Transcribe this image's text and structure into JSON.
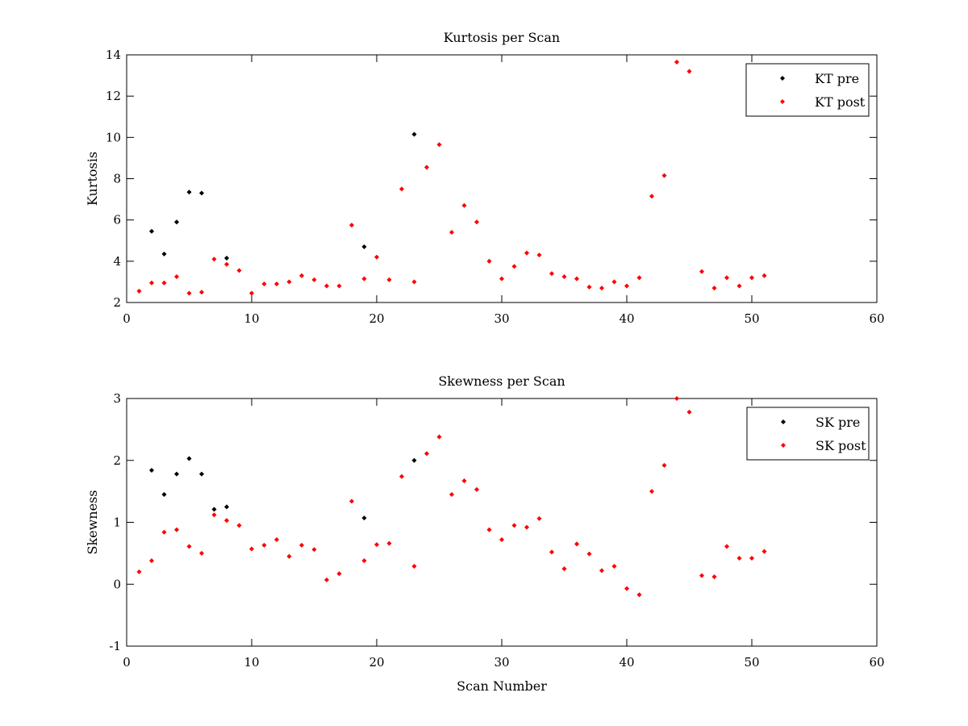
{
  "chart_data": [
    {
      "type": "scatter",
      "title": "Kurtosis per Scan",
      "xlabel": "",
      "ylabel": "Kurtosis",
      "xlim": [
        0,
        60
      ],
      "ylim": [
        2,
        14
      ],
      "xticks": [
        0,
        10,
        20,
        30,
        40,
        50,
        60
      ],
      "yticks": [
        2,
        4,
        6,
        8,
        10,
        12,
        14
      ],
      "grid": false,
      "legend_position": "top-right",
      "series": [
        {
          "name": "KT pre",
          "color": "#000000",
          "marker": "diamond",
          "x": [
            2,
            3,
            4,
            5,
            6,
            8,
            19,
            23
          ],
          "y": [
            5.45,
            4.35,
            5.9,
            7.35,
            7.3,
            4.15,
            4.7,
            10.15
          ]
        },
        {
          "name": "KT post",
          "color": "#ff0000",
          "marker": "diamond",
          "x": [
            1,
            2,
            3,
            4,
            5,
            6,
            7,
            8,
            9,
            10,
            11,
            12,
            13,
            14,
            15,
            16,
            17,
            18,
            19,
            20,
            21,
            22,
            23,
            24,
            25,
            26,
            27,
            28,
            29,
            30,
            31,
            32,
            33,
            34,
            35,
            36,
            37,
            38,
            39,
            40,
            41,
            42,
            43,
            44,
            45,
            46,
            47,
            48,
            49,
            50,
            51
          ],
          "y": [
            2.55,
            2.95,
            2.95,
            3.25,
            2.45,
            2.5,
            4.1,
            3.85,
            3.55,
            2.45,
            2.9,
            2.9,
            3.0,
            3.3,
            3.1,
            2.8,
            2.8,
            5.75,
            3.15,
            4.2,
            3.1,
            7.5,
            3.0,
            8.55,
            9.65,
            5.4,
            6.7,
            5.9,
            4.0,
            3.15,
            3.75,
            4.4,
            4.3,
            3.4,
            3.25,
            3.15,
            2.75,
            2.7,
            3.0,
            2.8,
            3.2,
            7.15,
            8.15,
            13.65,
            13.2,
            3.5,
            2.7,
            3.2,
            2.8,
            3.2,
            3.3
          ]
        }
      ]
    },
    {
      "type": "scatter",
      "title": "Skewness per Scan",
      "xlabel": "Scan Number",
      "ylabel": "Skewness",
      "xlim": [
        0,
        60
      ],
      "ylim": [
        -1,
        3
      ],
      "xticks": [
        0,
        10,
        20,
        30,
        40,
        50,
        60
      ],
      "yticks": [
        -1,
        0,
        1,
        2,
        3
      ],
      "grid": false,
      "legend_position": "top-right",
      "series": [
        {
          "name": "SK pre",
          "color": "#000000",
          "marker": "diamond",
          "x": [
            2,
            3,
            4,
            5,
            6,
            7,
            8,
            19,
            23
          ],
          "y": [
            1.84,
            1.45,
            1.78,
            2.03,
            1.78,
            1.21,
            1.25,
            1.07,
            2.0
          ]
        },
        {
          "name": "SK post",
          "color": "#ff0000",
          "marker": "diamond",
          "x": [
            1,
            2,
            3,
            4,
            5,
            6,
            7,
            8,
            9,
            10,
            11,
            12,
            13,
            14,
            15,
            16,
            17,
            18,
            19,
            20,
            21,
            22,
            23,
            24,
            25,
            26,
            27,
            28,
            29,
            30,
            31,
            32,
            33,
            34,
            35,
            36,
            37,
            38,
            39,
            40,
            41,
            42,
            43,
            44,
            45,
            46,
            47,
            48,
            49,
            50,
            51
          ],
          "y": [
            0.2,
            0.38,
            0.84,
            0.88,
            0.61,
            0.5,
            1.12,
            1.03,
            0.95,
            0.57,
            0.63,
            0.72,
            0.45,
            0.63,
            0.56,
            0.07,
            0.17,
            1.34,
            0.38,
            0.64,
            0.66,
            1.74,
            0.29,
            2.11,
            2.38,
            1.45,
            1.67,
            1.53,
            0.88,
            0.72,
            0.95,
            0.92,
            1.06,
            0.52,
            0.25,
            0.65,
            0.49,
            0.22,
            0.29,
            -0.07,
            -0.17,
            1.5,
            1.92,
            3.0,
            2.78,
            0.14,
            0.12,
            0.61,
            0.42,
            0.42,
            0.53
          ]
        }
      ]
    }
  ]
}
